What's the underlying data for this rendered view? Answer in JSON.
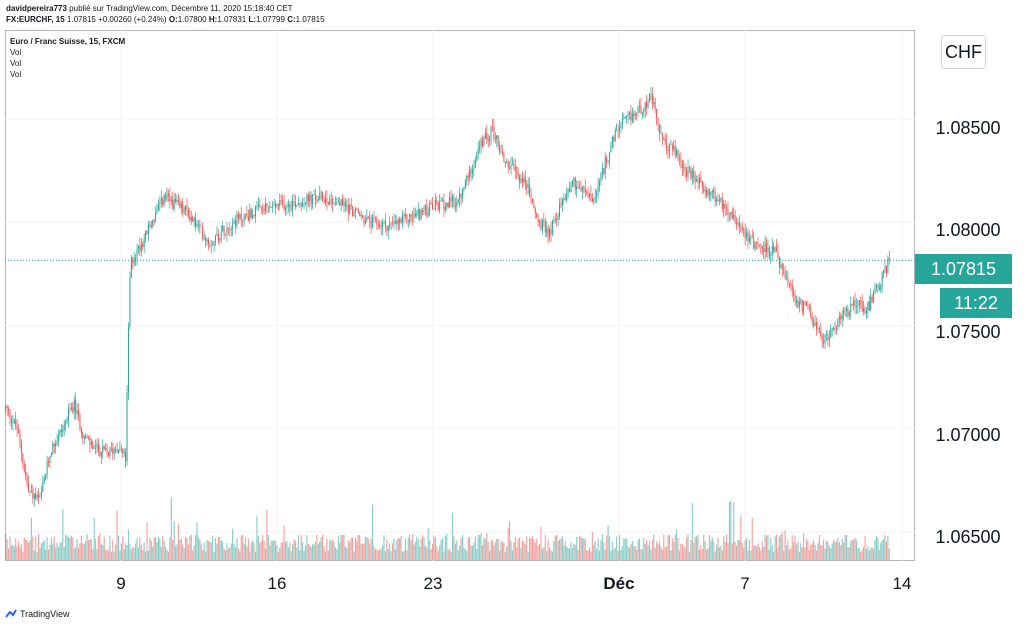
{
  "header": {
    "author": "davidpereira773",
    "published": "publié sur TradingView.com, Décembre 11, 2020 15:18:40 CET",
    "symbol": "FX:EURCHF, 15",
    "last": "1.07815",
    "change": "+0.00260 (+0.24%)",
    "open_label": "O:",
    "open": "1.07800",
    "high_label": "H:",
    "high": "1.07831",
    "low_label": "L:",
    "low": "1.07799",
    "close_label": "C:",
    "close": "1.07815"
  },
  "legend": {
    "title": "Euro / Franc Suisse, 15, FXCM",
    "vol": [
      "Vol",
      "Vol",
      "Vol"
    ]
  },
  "currency": "CHF",
  "last_price_label": "1.07815",
  "countdown": "11:22",
  "logo_text": "TradingView",
  "colors": {
    "up": "#26a69a",
    "down": "#ef5350",
    "grid": "#f0f3fa",
    "last_line": "#26a69a"
  },
  "chart_data": {
    "type": "candlestick",
    "title": "Euro / Franc Suisse, 15, FXCM",
    "y_ticks": [
      "1.06500",
      "1.07000",
      "1.07500",
      "1.08000",
      "1.08500"
    ],
    "ylim": [
      1.0636,
      1.0893
    ],
    "x_ticks": [
      "9",
      "16",
      "23",
      "Déc",
      "7",
      "14"
    ],
    "last_price": 1.07815,
    "price_path": [
      [
        0,
        1.071
      ],
      [
        0.5,
        1.07
      ],
      [
        1,
        1.067
      ],
      [
        1.5,
        1.0665
      ],
      [
        2,
        1.069
      ],
      [
        2.5,
        1.07
      ],
      [
        3,
        1.0712
      ],
      [
        3.5,
        1.0695
      ],
      [
        4,
        1.069
      ],
      [
        4.5,
        1.0688
      ],
      [
        5,
        1.0692
      ],
      [
        5.3,
        1.0685
      ],
      [
        5.4,
        1.074
      ],
      [
        5.5,
        1.078
      ],
      [
        6,
        1.079
      ],
      [
        7,
        1.0812
      ],
      [
        8,
        1.0805
      ],
      [
        9,
        1.079
      ],
      [
        10,
        1.08
      ],
      [
        11,
        1.0805
      ],
      [
        12,
        1.0808
      ],
      [
        13,
        1.081
      ],
      [
        14,
        1.0812
      ],
      [
        15,
        1.0808
      ],
      [
        16,
        1.08
      ],
      [
        17,
        1.0798
      ],
      [
        18,
        1.0803
      ],
      [
        19,
        1.0808
      ],
      [
        20,
        1.081
      ],
      [
        20.5,
        1.0825
      ],
      [
        21,
        1.0838
      ],
      [
        21.5,
        1.0845
      ],
      [
        22,
        1.083
      ],
      [
        23,
        1.0818
      ],
      [
        23.5,
        1.08
      ],
      [
        24,
        1.0795
      ],
      [
        24.5,
        1.0808
      ],
      [
        25,
        1.082
      ],
      [
        26,
        1.081
      ],
      [
        26.5,
        1.083
      ],
      [
        27,
        1.0845
      ],
      [
        28,
        1.0855
      ],
      [
        28.5,
        1.086
      ],
      [
        29,
        1.0838
      ],
      [
        29.5,
        1.0835
      ],
      [
        30,
        1.0825
      ],
      [
        31,
        1.0815
      ],
      [
        32,
        1.0805
      ],
      [
        33,
        1.079
      ],
      [
        34,
        1.0785
      ],
      [
        34.5,
        1.077
      ],
      [
        35,
        1.076
      ],
      [
        35.5,
        1.0758
      ],
      [
        36,
        1.0742
      ],
      [
        36.5,
        1.0748
      ],
      [
        37,
        1.0755
      ],
      [
        37.5,
        1.0762
      ],
      [
        38,
        1.0758
      ],
      [
        38.5,
        1.0768
      ],
      [
        39,
        1.07815
      ]
    ],
    "volume_range": [
      0,
      1
    ]
  }
}
